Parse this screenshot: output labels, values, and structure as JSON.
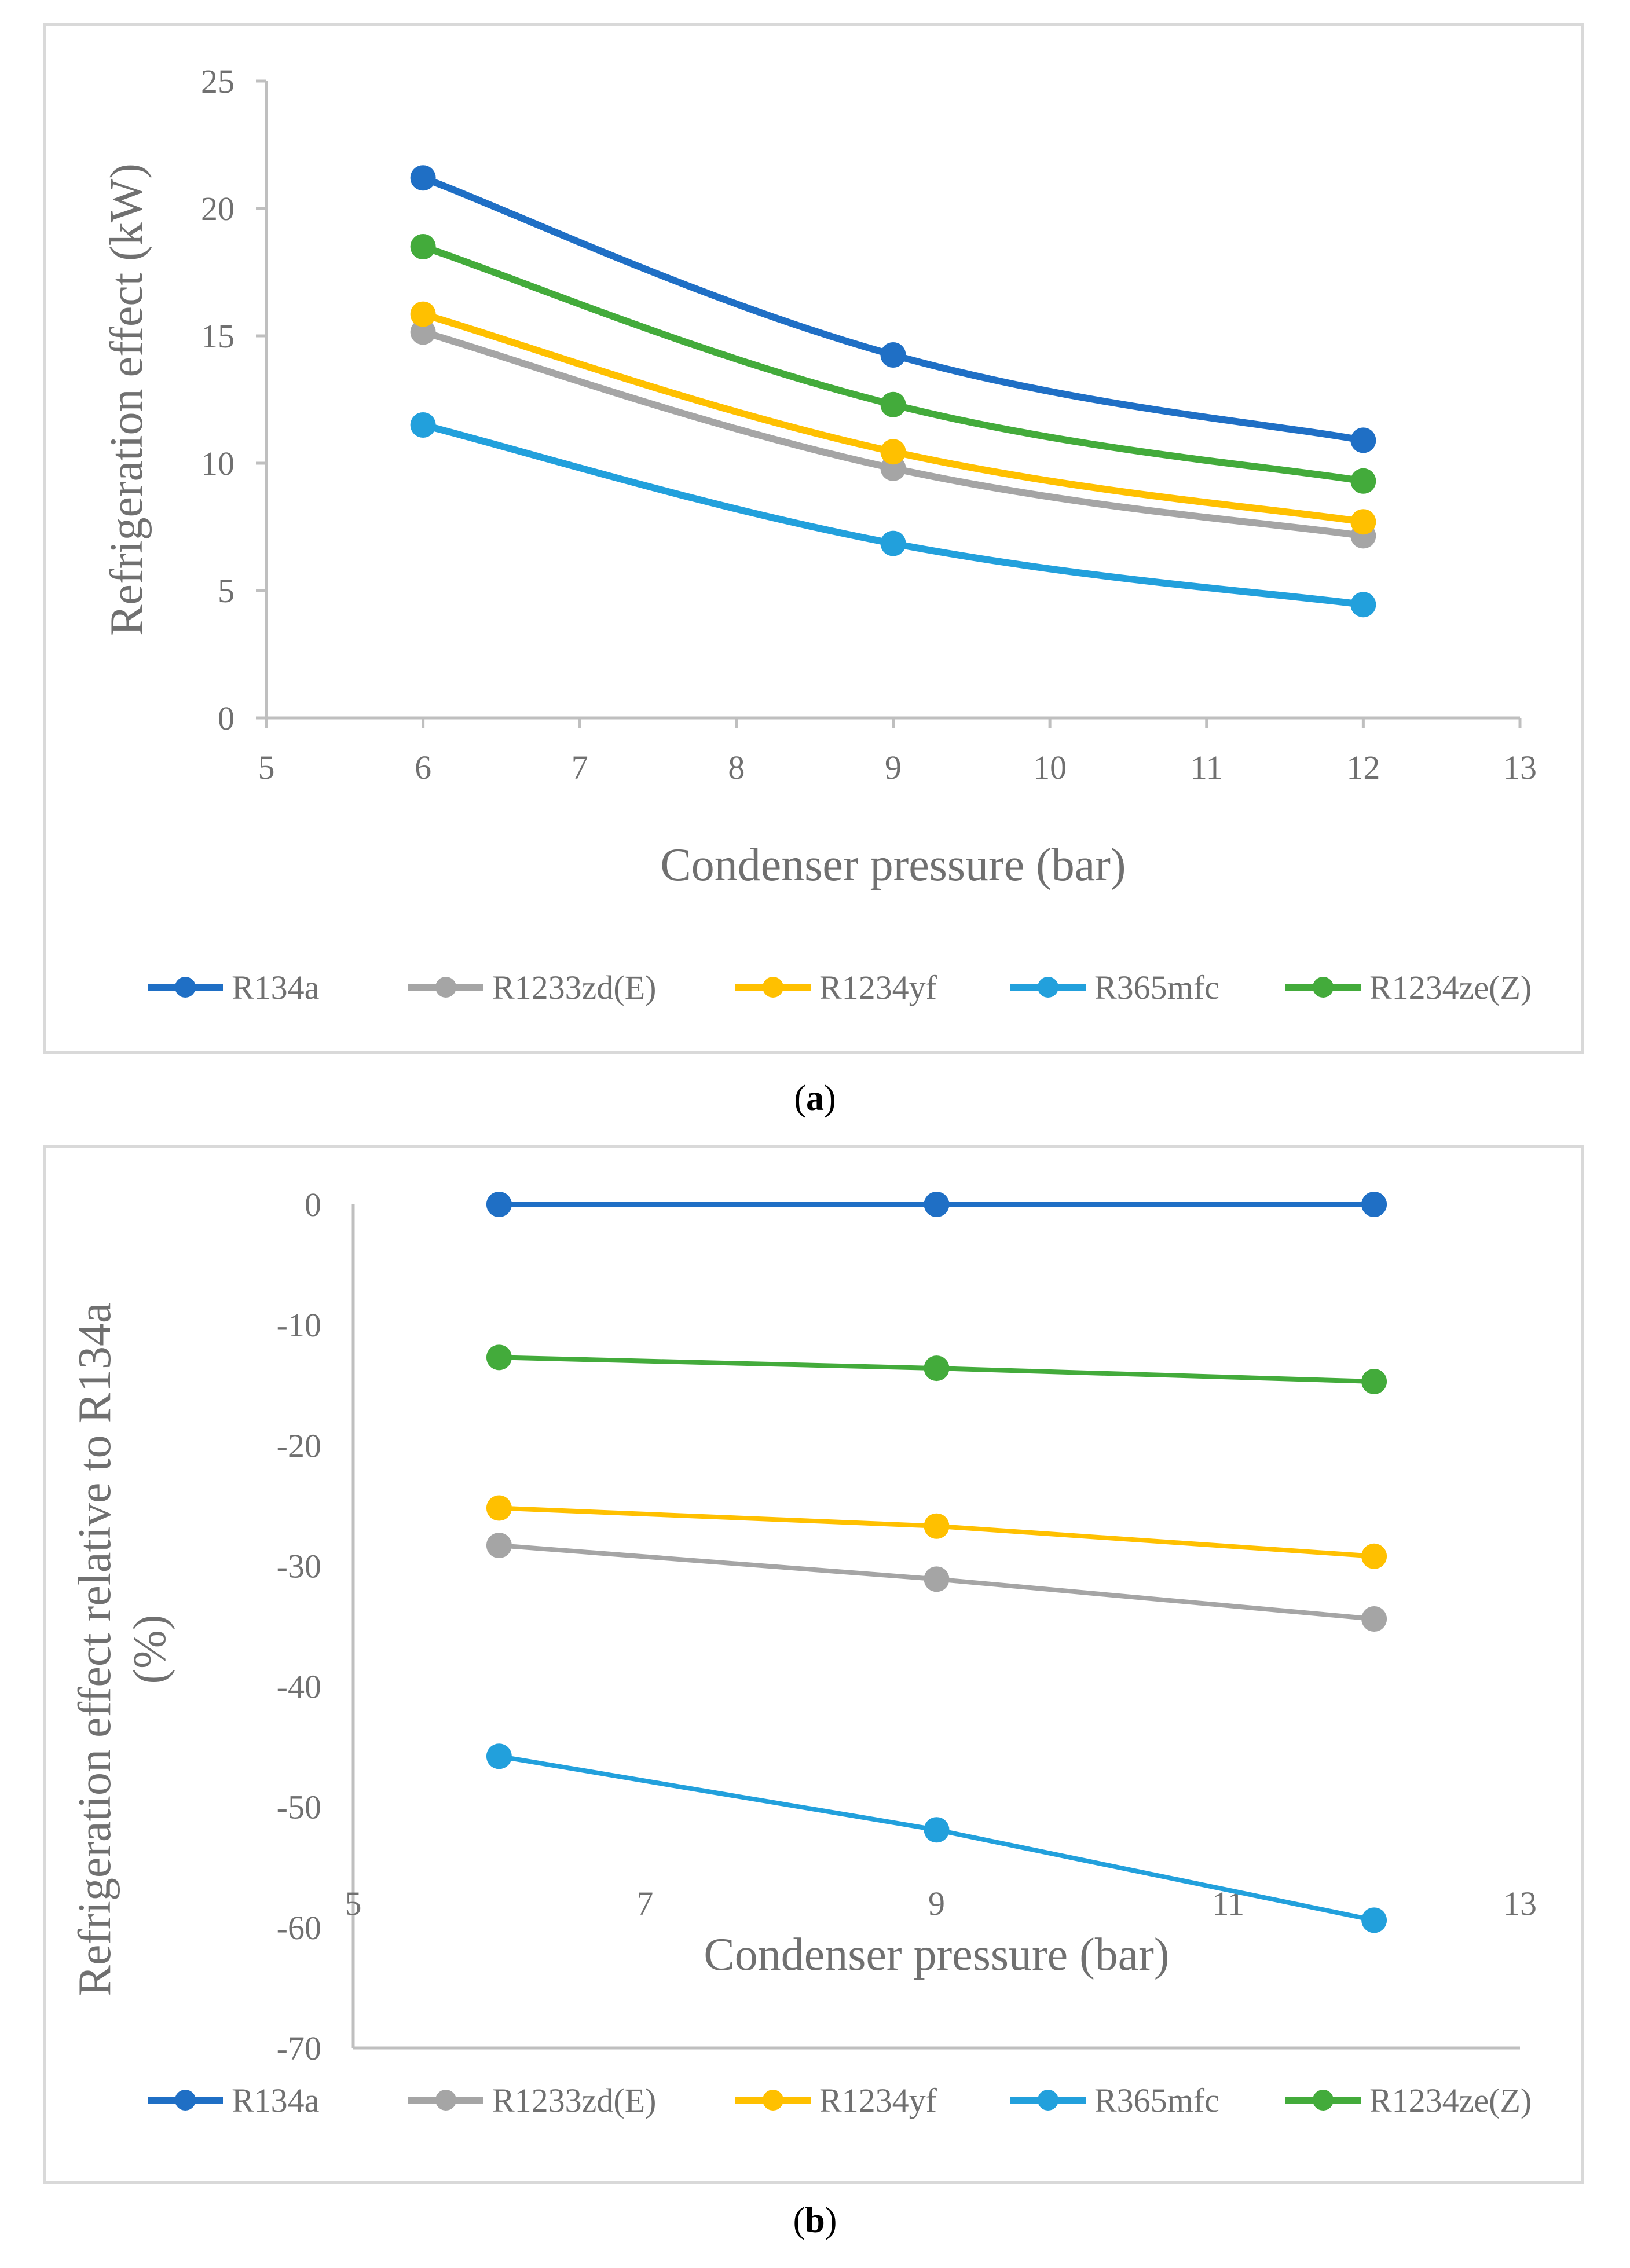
{
  "chart_data": [
    {
      "type": "line",
      "panel_label": "a",
      "title": "",
      "xlabel": "Condenser pressure (bar)",
      "ylabel": "Refrigeration effect (kW)",
      "xlim": [
        5,
        13
      ],
      "ylim": [
        0,
        25
      ],
      "xticks": [
        5,
        6,
        7,
        8,
        9,
        10,
        11,
        12,
        13
      ],
      "yticks": [
        0,
        5,
        10,
        15,
        20,
        25
      ],
      "grid": false,
      "smooth": true,
      "legend_position": "bottom",
      "x": [
        6,
        9,
        12
      ],
      "series": [
        {
          "name": "R134a",
          "color": "#1f6fc5",
          "values": [
            21.2,
            14.25,
            10.9
          ]
        },
        {
          "name": "R1233zd(E)",
          "color": "#a5a5a5",
          "values": [
            15.15,
            9.8,
            7.15
          ]
        },
        {
          "name": "R1234yf",
          "color": "#ffc000",
          "values": [
            15.85,
            10.45,
            7.7
          ]
        },
        {
          "name": "R365mfc",
          "color": "#22a0dc",
          "values": [
            11.5,
            6.85,
            4.45
          ]
        },
        {
          "name": "R1234ze(Z)",
          "color": "#43ab3b",
          "values": [
            18.5,
            12.3,
            9.3
          ]
        }
      ]
    },
    {
      "type": "line",
      "panel_label": "b",
      "title": "",
      "xlabel": "Condenser pressure (bar)",
      "ylabel_line1": "Refrigeration effect relative to R134a",
      "ylabel_line2": "(%)",
      "xlim": [
        5,
        13
      ],
      "ylim": [
        -70,
        0
      ],
      "xticks": [
        5,
        7,
        9,
        11,
        13
      ],
      "yticks": [
        0,
        -10,
        -20,
        -30,
        -40,
        -50,
        -60,
        -70
      ],
      "grid": false,
      "smooth": false,
      "legend_position": "bottom",
      "x": [
        6,
        9,
        12
      ],
      "series": [
        {
          "name": "R134a",
          "color": "#1f6fc5",
          "values": [
            0,
            0,
            0
          ]
        },
        {
          "name": "R1233zd(E)",
          "color": "#a5a5a5",
          "values": [
            -28.3,
            -31.1,
            -34.4
          ]
        },
        {
          "name": "R1234yf",
          "color": "#ffc000",
          "values": [
            -25.2,
            -26.7,
            -29.2
          ]
        },
        {
          "name": "R365mfc",
          "color": "#22a0dc",
          "values": [
            -45.8,
            -51.9,
            -59.4
          ]
        },
        {
          "name": "R1234ze(Z)",
          "color": "#43ab3b",
          "values": [
            -12.7,
            -13.6,
            -14.7
          ]
        }
      ]
    }
  ]
}
